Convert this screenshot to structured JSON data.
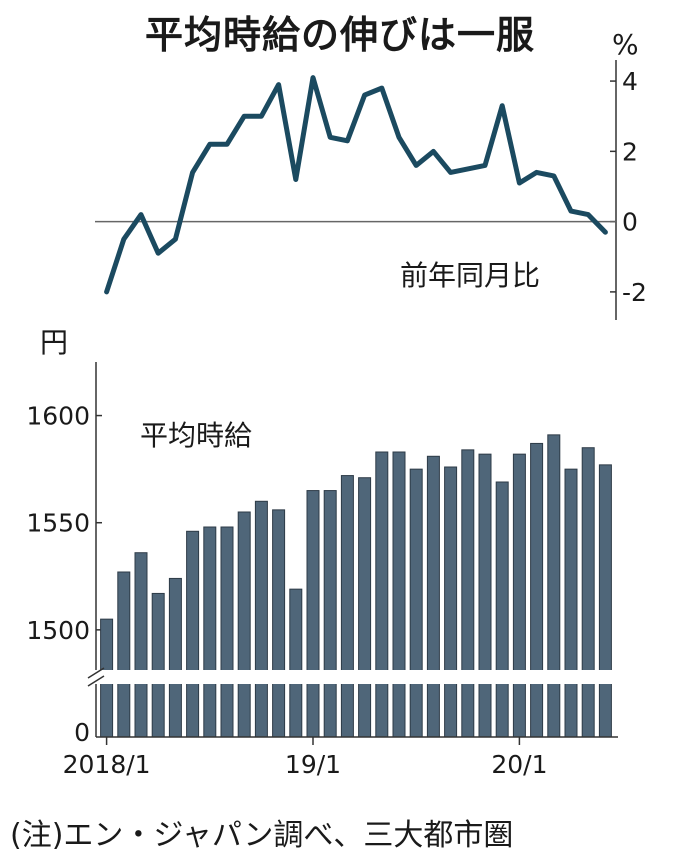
{
  "title": "平均時給の伸びは一服",
  "note": "(注)エン・ジャパン調べ、三大都市圏",
  "chart_data": [
    {
      "type": "line",
      "series_label": "前年同月比",
      "unit": "%",
      "ylim": [
        -2.8,
        4.6
      ],
      "yticks": [
        -2,
        0,
        2,
        4
      ],
      "ytick_labels": [
        "-2",
        "0",
        "2",
        "4"
      ],
      "values": [
        -2.0,
        -0.5,
        0.2,
        -0.9,
        -0.5,
        1.4,
        2.2,
        2.2,
        3.0,
        3.0,
        3.9,
        1.2,
        4.1,
        2.4,
        2.3,
        3.6,
        3.8,
        2.4,
        1.6,
        2.0,
        1.4,
        1.5,
        1.6,
        3.3,
        1.1,
        1.4,
        1.3,
        0.3,
        0.2,
        -0.3
      ]
    },
    {
      "type": "bar",
      "series_label": "平均時給",
      "unit": "円",
      "axis_break": true,
      "ylim": [
        1450,
        1625
      ],
      "yticks": [
        1500,
        1550,
        1600
      ],
      "ytick_labels": [
        "1500",
        "1550",
        "1600"
      ],
      "zero_label": "0",
      "values": [
        1505,
        1527,
        1536,
        1517,
        1524,
        1546,
        1548,
        1548,
        1555,
        1560,
        1556,
        1519,
        1565,
        1565,
        1572,
        1571,
        1583,
        1583,
        1575,
        1581,
        1576,
        1584,
        1582,
        1569,
        1582,
        1587,
        1591,
        1575,
        1585,
        1577
      ]
    }
  ],
  "x_labels": [
    {
      "label": "2018/1",
      "index": 0
    },
    {
      "label": "19/1",
      "index": 12
    },
    {
      "label": "20/1",
      "index": 24
    }
  ],
  "colors": {
    "line": "#1b4a60",
    "bar_fill": "#4f6679",
    "bar_stroke": "#2d3b47",
    "axis": "#333333",
    "zero_line": "#666666"
  }
}
